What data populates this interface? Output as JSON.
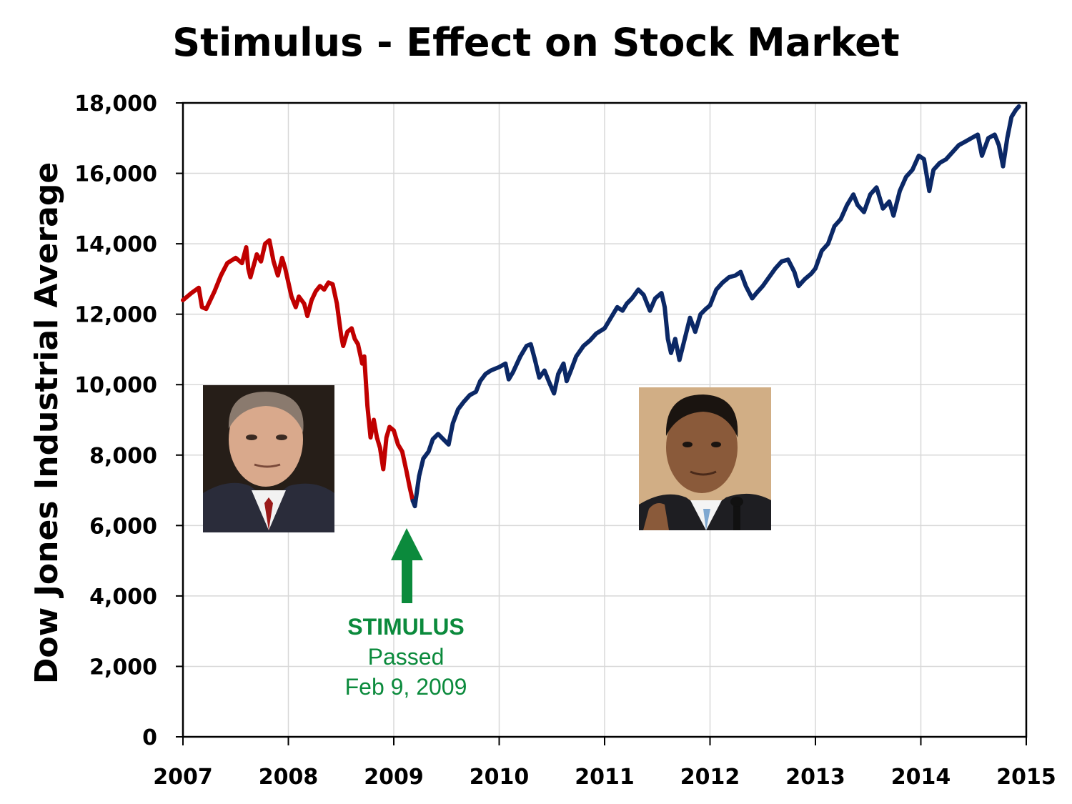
{
  "chart_data": {
    "type": "line",
    "title": "Stimulus - Effect on Stock Market",
    "ylabel": "Dow Jones Industrial Average",
    "xlabel": "",
    "xlim": [
      2007,
      2015
    ],
    "ylim": [
      0,
      18000
    ],
    "x_ticks": [
      "2007",
      "2008",
      "2009",
      "2010",
      "2011",
      "2012",
      "2013",
      "2014",
      "2015"
    ],
    "y_ticks": [
      "0",
      "2,000",
      "4,000",
      "6,000",
      "8,000",
      "10,000",
      "12,000",
      "14,000",
      "16,000",
      "18,000"
    ],
    "grid": true,
    "series": [
      {
        "color": "#c00000",
        "points": [
          [
            2007.0,
            12400
          ],
          [
            2007.08,
            12600
          ],
          [
            2007.15,
            12750
          ],
          [
            2007.18,
            12200
          ],
          [
            2007.22,
            12150
          ],
          [
            2007.3,
            12650
          ],
          [
            2007.36,
            13100
          ],
          [
            2007.42,
            13450
          ],
          [
            2007.5,
            13600
          ],
          [
            2007.56,
            13450
          ],
          [
            2007.6,
            13900
          ],
          [
            2007.62,
            13300
          ],
          [
            2007.64,
            13050
          ],
          [
            2007.7,
            13700
          ],
          [
            2007.74,
            13500
          ],
          [
            2007.78,
            14000
          ],
          [
            2007.82,
            14100
          ],
          [
            2007.86,
            13500
          ],
          [
            2007.9,
            13100
          ],
          [
            2007.94,
            13600
          ],
          [
            2007.97,
            13300
          ],
          [
            2008.0,
            12900
          ],
          [
            2008.03,
            12500
          ],
          [
            2008.07,
            12200
          ],
          [
            2008.1,
            12500
          ],
          [
            2008.15,
            12300
          ],
          [
            2008.18,
            11950
          ],
          [
            2008.22,
            12400
          ],
          [
            2008.26,
            12650
          ],
          [
            2008.3,
            12800
          ],
          [
            2008.34,
            12700
          ],
          [
            2008.38,
            12900
          ],
          [
            2008.42,
            12850
          ],
          [
            2008.46,
            12300
          ],
          [
            2008.5,
            11400
          ],
          [
            2008.52,
            11100
          ],
          [
            2008.56,
            11500
          ],
          [
            2008.6,
            11600
          ],
          [
            2008.63,
            11300
          ],
          [
            2008.66,
            11150
          ],
          [
            2008.7,
            10600
          ],
          [
            2008.72,
            10800
          ],
          [
            2008.75,
            9400
          ],
          [
            2008.78,
            8500
          ],
          [
            2008.81,
            9000
          ],
          [
            2008.84,
            8500
          ],
          [
            2008.87,
            8200
          ],
          [
            2008.9,
            7600
          ],
          [
            2008.93,
            8500
          ],
          [
            2008.96,
            8800
          ],
          [
            2009.0,
            8700
          ],
          [
            2009.04,
            8300
          ],
          [
            2009.08,
            8100
          ],
          [
            2009.12,
            7550
          ],
          [
            2009.15,
            7100
          ],
          [
            2009.18,
            6700
          ]
        ]
      },
      {
        "color": "#0b2866",
        "points": [
          [
            2009.18,
            6700
          ],
          [
            2009.2,
            6550
          ],
          [
            2009.24,
            7400
          ],
          [
            2009.28,
            7900
          ],
          [
            2009.33,
            8100
          ],
          [
            2009.37,
            8450
          ],
          [
            2009.42,
            8600
          ],
          [
            2009.47,
            8450
          ],
          [
            2009.52,
            8300
          ],
          [
            2009.56,
            8900
          ],
          [
            2009.61,
            9300
          ],
          [
            2009.66,
            9500
          ],
          [
            2009.72,
            9700
          ],
          [
            2009.78,
            9800
          ],
          [
            2009.82,
            10100
          ],
          [
            2009.87,
            10300
          ],
          [
            2009.92,
            10400
          ],
          [
            2009.96,
            10450
          ],
          [
            2010.0,
            10500
          ],
          [
            2010.06,
            10600
          ],
          [
            2010.09,
            10150
          ],
          [
            2010.13,
            10350
          ],
          [
            2010.2,
            10800
          ],
          [
            2010.26,
            11100
          ],
          [
            2010.3,
            11150
          ],
          [
            2010.34,
            10700
          ],
          [
            2010.38,
            10200
          ],
          [
            2010.43,
            10400
          ],
          [
            2010.47,
            10100
          ],
          [
            2010.52,
            9750
          ],
          [
            2010.56,
            10300
          ],
          [
            2010.61,
            10600
          ],
          [
            2010.64,
            10100
          ],
          [
            2010.68,
            10400
          ],
          [
            2010.73,
            10800
          ],
          [
            2010.8,
            11100
          ],
          [
            2010.86,
            11250
          ],
          [
            2010.92,
            11450
          ],
          [
            2011.0,
            11600
          ],
          [
            2011.06,
            11900
          ],
          [
            2011.12,
            12200
          ],
          [
            2011.17,
            12100
          ],
          [
            2011.21,
            12300
          ],
          [
            2011.26,
            12450
          ],
          [
            2011.32,
            12700
          ],
          [
            2011.37,
            12550
          ],
          [
            2011.43,
            12100
          ],
          [
            2011.48,
            12450
          ],
          [
            2011.54,
            12600
          ],
          [
            2011.57,
            12200
          ],
          [
            2011.6,
            11300
          ],
          [
            2011.63,
            10900
          ],
          [
            2011.67,
            11300
          ],
          [
            2011.71,
            10700
          ],
          [
            2011.76,
            11300
          ],
          [
            2011.81,
            11900
          ],
          [
            2011.86,
            11500
          ],
          [
            2011.91,
            12000
          ],
          [
            2011.96,
            12150
          ],
          [
            2012.0,
            12250
          ],
          [
            2012.06,
            12700
          ],
          [
            2012.12,
            12900
          ],
          [
            2012.18,
            13050
          ],
          [
            2012.24,
            13100
          ],
          [
            2012.29,
            13200
          ],
          [
            2012.34,
            12800
          ],
          [
            2012.4,
            12450
          ],
          [
            2012.44,
            12600
          ],
          [
            2012.5,
            12800
          ],
          [
            2012.56,
            13050
          ],
          [
            2012.62,
            13300
          ],
          [
            2012.68,
            13500
          ],
          [
            2012.74,
            13550
          ],
          [
            2012.8,
            13200
          ],
          [
            2012.84,
            12800
          ],
          [
            2012.9,
            13000
          ],
          [
            2012.96,
            13150
          ],
          [
            2013.0,
            13300
          ],
          [
            2013.06,
            13800
          ],
          [
            2013.12,
            14000
          ],
          [
            2013.18,
            14500
          ],
          [
            2013.24,
            14700
          ],
          [
            2013.3,
            15100
          ],
          [
            2013.36,
            15400
          ],
          [
            2013.4,
            15100
          ],
          [
            2013.46,
            14900
          ],
          [
            2013.52,
            15400
          ],
          [
            2013.58,
            15600
          ],
          [
            2013.64,
            15000
          ],
          [
            2013.7,
            15200
          ],
          [
            2013.74,
            14800
          ],
          [
            2013.8,
            15500
          ],
          [
            2013.86,
            15900
          ],
          [
            2013.92,
            16100
          ],
          [
            2013.98,
            16500
          ],
          [
            2014.03,
            16400
          ],
          [
            2014.08,
            15500
          ],
          [
            2014.12,
            16100
          ],
          [
            2014.18,
            16300
          ],
          [
            2014.24,
            16400
          ],
          [
            2014.3,
            16600
          ],
          [
            2014.36,
            16800
          ],
          [
            2014.42,
            16900
          ],
          [
            2014.48,
            17000
          ],
          [
            2014.54,
            17100
          ],
          [
            2014.58,
            16500
          ],
          [
            2014.64,
            17000
          ],
          [
            2014.7,
            17100
          ],
          [
            2014.74,
            16800
          ],
          [
            2014.78,
            16200
          ],
          [
            2014.82,
            17000
          ],
          [
            2014.86,
            17600
          ],
          [
            2014.9,
            17800
          ],
          [
            2014.93,
            17900
          ]
        ]
      }
    ],
    "annotation": {
      "x": 2009.11,
      "title": "STIMULUS",
      "line1": "Passed",
      "line2": "Feb 9, 2009",
      "color": "#0b8a3c"
    },
    "photos": [
      {
        "name": "left-portrait",
        "period": "2008"
      },
      {
        "name": "right-portrait",
        "period": "2012"
      }
    ]
  }
}
